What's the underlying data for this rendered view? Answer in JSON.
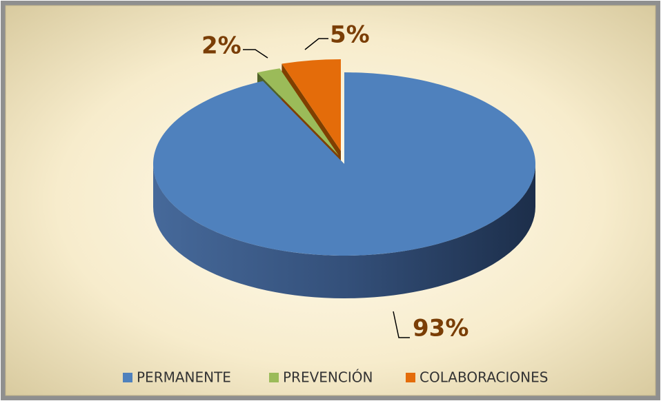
{
  "chart_data": {
    "type": "pie3d",
    "categories": [
      "PERMANENTE",
      "PREVENCIÓN",
      "COLABORACIONES"
    ],
    "values": [
      93,
      2,
      5
    ],
    "value_labels": [
      "93%",
      "2%",
      "5%"
    ],
    "colors": [
      "#4f81bd",
      "#9bbb59",
      "#e46c0a"
    ],
    "legend": "bottom"
  }
}
